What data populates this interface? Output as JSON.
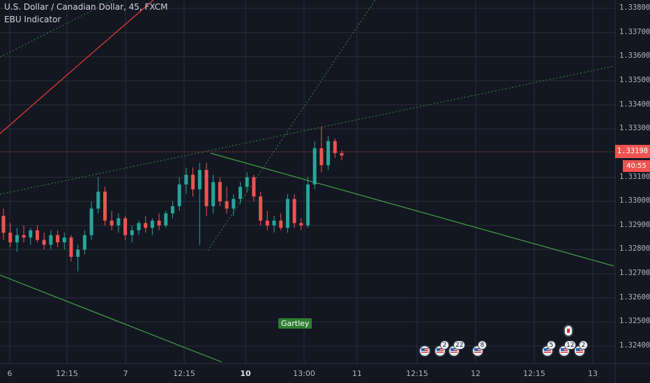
{
  "header": {
    "title": "U.S. Dollar / Canadian Dollar, 45, FXCM",
    "indicator": "EBU Indicator"
  },
  "price_axis": {
    "labels": [
      "1.33800",
      "1.33700",
      "1.33600",
      "1.33500",
      "1.33400",
      "1.33300",
      "1.33100",
      "1.33000",
      "1.32900",
      "1.32800",
      "1.32700",
      "1.32600",
      "1.32500",
      "1.32400"
    ]
  },
  "current_price": "1.33198",
  "countdown": "40:55",
  "time_axis": {
    "labels": [
      {
        "text": "6",
        "bold": false
      },
      {
        "text": "12:15",
        "bold": false
      },
      {
        "text": "7",
        "bold": false
      },
      {
        "text": "12:15",
        "bold": false
      },
      {
        "text": "10",
        "bold": true
      },
      {
        "text": "13:00",
        "bold": false
      },
      {
        "text": "11",
        "bold": false
      },
      {
        "text": "12:15",
        "bold": false
      },
      {
        "text": "12",
        "bold": false
      },
      {
        "text": "12:15",
        "bold": false
      },
      {
        "text": "13",
        "bold": false
      }
    ]
  },
  "pattern_label": "Gartley",
  "events": {
    "badges": [
      "2",
      "22",
      "8",
      "5",
      "12",
      "2"
    ]
  },
  "colors": {
    "background": "#131722",
    "grid": "#2a2e39",
    "up": "#26a69a",
    "down": "#ef5350",
    "trend_green": "#43a047",
    "trend_red": "#e53935",
    "dotted_green": "#388e3c"
  },
  "chart_data": {
    "type": "candlestick",
    "title": "U.S. Dollar / Canadian Dollar, 45, FXCM",
    "ylim": [
      1.3237,
      1.3384
    ],
    "last": 1.33198,
    "series": [
      {
        "name": "candles",
        "values": [
          [
            1.3294,
            1.3297,
            1.3284,
            1.3287
          ],
          [
            1.3287,
            1.3291,
            1.3281,
            1.3283
          ],
          [
            1.3283,
            1.3289,
            1.3279,
            1.3286
          ],
          [
            1.3286,
            1.329,
            1.3283,
            1.3285
          ],
          [
            1.3285,
            1.3289,
            1.3282,
            1.3288
          ],
          [
            1.3288,
            1.329,
            1.3283,
            1.3284
          ],
          [
            1.3284,
            1.3287,
            1.328,
            1.3282
          ],
          [
            1.3282,
            1.3288,
            1.328,
            1.3286
          ],
          [
            1.3286,
            1.3288,
            1.3281,
            1.3283
          ],
          [
            1.3283,
            1.3287,
            1.328,
            1.3285
          ],
          [
            1.3285,
            1.3286,
            1.3275,
            1.3277
          ],
          [
            1.3277,
            1.3282,
            1.3271,
            1.328
          ],
          [
            1.328,
            1.3288,
            1.3278,
            1.3286
          ],
          [
            1.3286,
            1.33,
            1.3284,
            1.3297
          ],
          [
            1.3297,
            1.331,
            1.3295,
            1.3304
          ],
          [
            1.3304,
            1.3306,
            1.329,
            1.3292
          ],
          [
            1.3292,
            1.3296,
            1.3288,
            1.329
          ],
          [
            1.329,
            1.3295,
            1.3287,
            1.3293
          ],
          [
            1.3293,
            1.3294,
            1.3284,
            1.3286
          ],
          [
            1.3286,
            1.329,
            1.3283,
            1.3288
          ],
          [
            1.3288,
            1.3292,
            1.3286,
            1.3291
          ],
          [
            1.3291,
            1.3294,
            1.3287,
            1.3289
          ],
          [
            1.3289,
            1.3293,
            1.3286,
            1.3292
          ],
          [
            1.3292,
            1.3295,
            1.3288,
            1.329
          ],
          [
            1.329,
            1.3296,
            1.3289,
            1.3295
          ],
          [
            1.3295,
            1.33,
            1.3293,
            1.3298
          ],
          [
            1.3298,
            1.331,
            1.3296,
            1.3307
          ],
          [
            1.3307,
            1.3314,
            1.3303,
            1.3311
          ],
          [
            1.3311,
            1.3314,
            1.3302,
            1.3305
          ],
          [
            1.3305,
            1.3316,
            1.3282,
            1.3313
          ],
          [
            1.3313,
            1.3316,
            1.3294,
            1.3298
          ],
          [
            1.3298,
            1.3311,
            1.3295,
            1.3308
          ],
          [
            1.3308,
            1.331,
            1.3298,
            1.33
          ],
          [
            1.33,
            1.3306,
            1.3295,
            1.3297
          ],
          [
            1.3297,
            1.3303,
            1.3294,
            1.3301
          ],
          [
            1.3301,
            1.3308,
            1.3299,
            1.3306
          ],
          [
            1.3306,
            1.3312,
            1.3304,
            1.331
          ],
          [
            1.331,
            1.3311,
            1.33,
            1.3302
          ],
          [
            1.3302,
            1.3304,
            1.329,
            1.3292
          ],
          [
            1.3292,
            1.3296,
            1.3288,
            1.329
          ],
          [
            1.329,
            1.3294,
            1.3287,
            1.3292
          ],
          [
            1.3292,
            1.3295,
            1.3288,
            1.3289
          ],
          [
            1.3289,
            1.3303,
            1.3287,
            1.3301
          ],
          [
            1.3301,
            1.3303,
            1.3289,
            1.3291
          ],
          [
            1.3291,
            1.3293,
            1.3288,
            1.329
          ],
          [
            1.329,
            1.331,
            1.3289,
            1.3307
          ],
          [
            1.3307,
            1.3325,
            1.3305,
            1.3322
          ],
          [
            1.3322,
            1.3331,
            1.3312,
            1.3315
          ],
          [
            1.3315,
            1.3327,
            1.3313,
            1.3325
          ],
          [
            1.3325,
            1.3326,
            1.3318,
            1.332
          ],
          [
            1.332,
            1.3321,
            1.3317,
            1.3319
          ]
        ]
      }
    ]
  }
}
